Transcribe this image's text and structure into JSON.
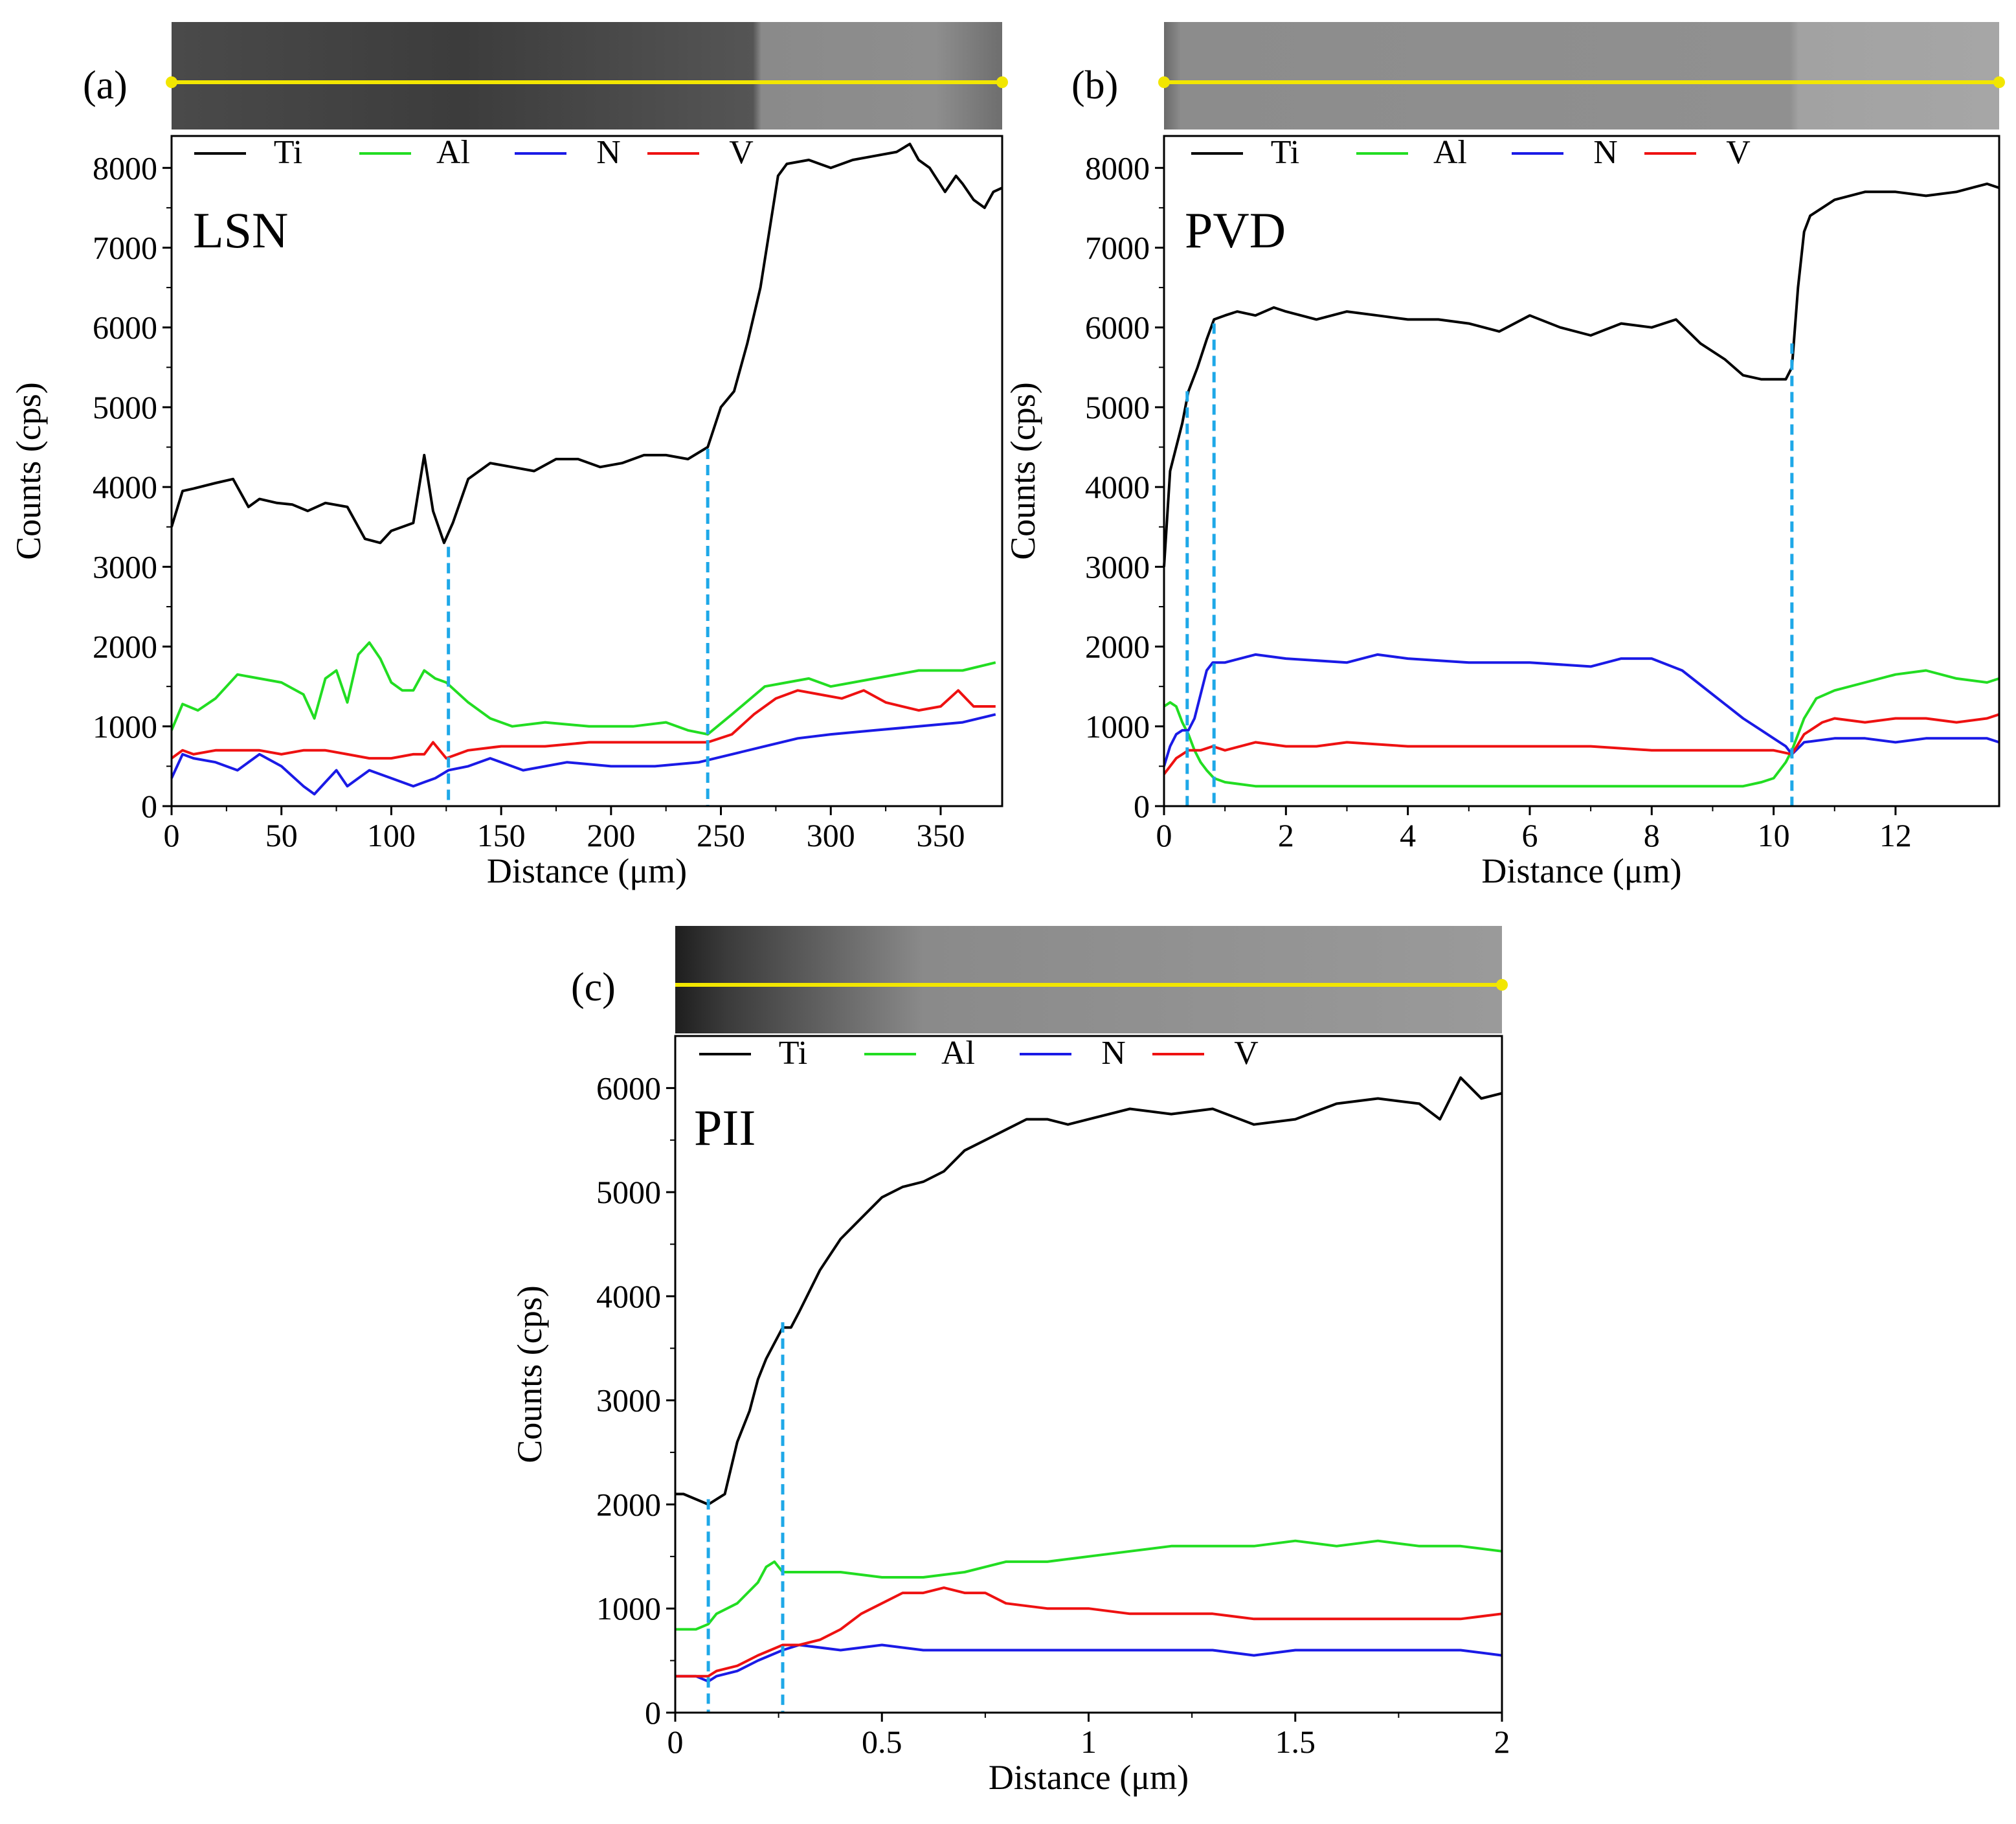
{
  "figure": {
    "legend_labels": [
      "Ti",
      "Al",
      "N",
      "V"
    ],
    "series_colors": {
      "Ti": "#000000",
      "Al": "#22dd22",
      "N": "#1a1ae6",
      "V": "#ee1111"
    },
    "marker_color": "#1ea8e8",
    "scan_line_color": "#f2e600"
  },
  "chart_data": [
    {
      "panel": "(a)",
      "sample": "LSN",
      "type": "line",
      "xlabel": "Distance (μm)",
      "ylabel": "Counts (cps)",
      "xlim": [
        0,
        378
      ],
      "ylim": [
        0,
        8400
      ],
      "xticks": [
        0,
        50,
        100,
        150,
        200,
        250,
        300,
        350
      ],
      "xtick_labels": [
        "0",
        "50",
        "100",
        "150",
        "200",
        "250",
        "300",
        "350"
      ],
      "yticks": [
        0,
        1000,
        2000,
        3000,
        4000,
        5000,
        6000,
        7000,
        8000
      ],
      "ytick_labels": [
        "0",
        "1000",
        "2000",
        "3000",
        "4000",
        "5000",
        "6000",
        "7000",
        "8000"
      ],
      "markers": [
        {
          "x": 126,
          "ytop": 3250
        },
        {
          "x": 244,
          "ytop": 4480
        }
      ],
      "series": [
        {
          "name": "Ti",
          "x": [
            0,
            5,
            10,
            20,
            28,
            35,
            40,
            48,
            55,
            62,
            70,
            80,
            88,
            95,
            100,
            110,
            115,
            119,
            124,
            128,
            135,
            145,
            155,
            165,
            175,
            185,
            195,
            205,
            215,
            225,
            235,
            244,
            250,
            256,
            262,
            268,
            272,
            276,
            280,
            290,
            300,
            310,
            320,
            330,
            336,
            340,
            345,
            352,
            357,
            360,
            365,
            370,
            374,
            378
          ],
          "y": [
            3500,
            3950,
            3980,
            4050,
            4100,
            3750,
            3850,
            3800,
            3780,
            3700,
            3800,
            3750,
            3350,
            3300,
            3450,
            3550,
            4400,
            3700,
            3300,
            3550,
            4100,
            4300,
            4250,
            4200,
            4350,
            4350,
            4250,
            4300,
            4400,
            4400,
            4350,
            4500,
            5000,
            5200,
            5800,
            6500,
            7200,
            7900,
            8050,
            8100,
            8000,
            8100,
            8150,
            8200,
            8300,
            8100,
            8000,
            7700,
            7900,
            7800,
            7600,
            7500,
            7700,
            7750
          ]
        },
        {
          "name": "Al",
          "x": [
            0,
            5,
            12,
            20,
            30,
            40,
            50,
            60,
            65,
            70,
            75,
            80,
            85,
            90,
            95,
            100,
            105,
            110,
            115,
            120,
            125,
            135,
            145,
            155,
            170,
            190,
            210,
            225,
            235,
            244,
            255,
            270,
            280,
            290,
            300,
            320,
            340,
            360,
            375
          ],
          "y": [
            950,
            1280,
            1200,
            1350,
            1650,
            1600,
            1550,
            1400,
            1100,
            1600,
            1700,
            1300,
            1900,
            2050,
            1850,
            1550,
            1450,
            1450,
            1700,
            1600,
            1550,
            1300,
            1100,
            1000,
            1050,
            1000,
            1000,
            1050,
            950,
            900,
            1150,
            1500,
            1550,
            1600,
            1500,
            1600,
            1700,
            1700,
            1800
          ]
        },
        {
          "name": "N",
          "x": [
            0,
            5,
            10,
            20,
            30,
            40,
            50,
            60,
            65,
            70,
            75,
            80,
            85,
            90,
            95,
            100,
            110,
            115,
            120,
            126,
            135,
            145,
            160,
            180,
            200,
            220,
            240,
            255,
            270,
            285,
            300,
            320,
            340,
            360,
            375
          ],
          "y": [
            350,
            650,
            600,
            550,
            450,
            650,
            500,
            250,
            150,
            300,
            450,
            250,
            350,
            450,
            400,
            350,
            250,
            300,
            350,
            450,
            500,
            600,
            450,
            550,
            500,
            500,
            550,
            650,
            750,
            850,
            900,
            950,
            1000,
            1050,
            1150
          ]
        },
        {
          "name": "V",
          "x": [
            0,
            5,
            10,
            20,
            30,
            40,
            50,
            60,
            70,
            80,
            90,
            100,
            110,
            115,
            119,
            125,
            135,
            150,
            170,
            190,
            210,
            230,
            244,
            255,
            265,
            275,
            285,
            295,
            305,
            315,
            325,
            340,
            350,
            358,
            365,
            375
          ],
          "y": [
            600,
            700,
            650,
            700,
            700,
            700,
            650,
            700,
            700,
            650,
            600,
            600,
            650,
            650,
            800,
            600,
            700,
            750,
            750,
            800,
            800,
            800,
            800,
            900,
            1150,
            1350,
            1450,
            1400,
            1350,
            1450,
            1300,
            1200,
            1250,
            1450,
            1250,
            1250
          ]
        }
      ]
    },
    {
      "panel": "(b)",
      "sample": "PVD",
      "type": "line",
      "xlabel": "Distance (μm)",
      "ylabel": "Counts (cps)",
      "xlim": [
        0,
        13.7
      ],
      "ylim": [
        0,
        8400
      ],
      "xticks": [
        0,
        2,
        4,
        6,
        8,
        10,
        12
      ],
      "xtick_labels": [
        "0",
        "2",
        "4",
        "6",
        "8",
        "10",
        "12"
      ],
      "yticks": [
        0,
        1000,
        2000,
        3000,
        4000,
        5000,
        6000,
        7000,
        8000
      ],
      "ytick_labels": [
        "0",
        "1000",
        "2000",
        "3000",
        "4000",
        "5000",
        "6000",
        "7000",
        "8000"
      ],
      "markers": [
        {
          "x": 0.38,
          "ytop": 5200
        },
        {
          "x": 0.82,
          "ytop": 6050
        },
        {
          "x": 10.3,
          "ytop": 5800
        }
      ],
      "series": [
        {
          "name": "Ti",
          "x": [
            0,
            0.1,
            0.2,
            0.3,
            0.4,
            0.55,
            0.7,
            0.82,
            1.0,
            1.2,
            1.5,
            1.8,
            2.0,
            2.5,
            3.0,
            3.5,
            4.0,
            4.5,
            5.0,
            5.5,
            6.0,
            6.5,
            7.0,
            7.5,
            8.0,
            8.4,
            8.8,
            9.2,
            9.5,
            9.8,
            10.0,
            10.2,
            10.3,
            10.4,
            10.5,
            10.6,
            10.8,
            11.0,
            11.5,
            12.0,
            12.5,
            13.0,
            13.5,
            13.7
          ],
          "y": [
            3000,
            4200,
            4500,
            4800,
            5200,
            5500,
            5850,
            6100,
            6150,
            6200,
            6150,
            6250,
            6200,
            6100,
            6200,
            6150,
            6100,
            6100,
            6050,
            5950,
            6150,
            6000,
            5900,
            6050,
            6000,
            6100,
            5800,
            5600,
            5400,
            5350,
            5350,
            5350,
            5500,
            6500,
            7200,
            7400,
            7500,
            7600,
            7700,
            7700,
            7650,
            7700,
            7800,
            7750
          ]
        },
        {
          "name": "Al",
          "x": [
            0,
            0.1,
            0.2,
            0.3,
            0.4,
            0.5,
            0.6,
            0.7,
            0.82,
            1.0,
            1.5,
            2.0,
            3.0,
            4.0,
            5.0,
            6.0,
            7.0,
            8.0,
            9.0,
            9.5,
            9.8,
            10.0,
            10.2,
            10.3,
            10.5,
            10.7,
            11.0,
            11.5,
            12.0,
            12.5,
            13.0,
            13.5,
            13.7
          ],
          "y": [
            1250,
            1300,
            1250,
            1050,
            900,
            700,
            550,
            450,
            350,
            300,
            250,
            250,
            250,
            250,
            250,
            250,
            250,
            250,
            250,
            250,
            300,
            350,
            550,
            700,
            1100,
            1350,
            1450,
            1550,
            1650,
            1700,
            1600,
            1550,
            1600
          ]
        },
        {
          "name": "N",
          "x": [
            0,
            0.1,
            0.2,
            0.3,
            0.4,
            0.5,
            0.6,
            0.7,
            0.8,
            1.0,
            1.5,
            2.0,
            3.0,
            3.5,
            4.0,
            5.0,
            6.0,
            7.0,
            7.5,
            8.0,
            8.5,
            9.0,
            9.5,
            9.8,
            10.0,
            10.2,
            10.3,
            10.5,
            11.0,
            11.5,
            12.0,
            12.5,
            13.0,
            13.5,
            13.7
          ],
          "y": [
            500,
            750,
            900,
            950,
            950,
            1100,
            1400,
            1700,
            1800,
            1800,
            1900,
            1850,
            1800,
            1900,
            1850,
            1800,
            1800,
            1750,
            1850,
            1850,
            1700,
            1400,
            1100,
            950,
            850,
            750,
            650,
            800,
            850,
            850,
            800,
            850,
            850,
            850,
            800
          ]
        },
        {
          "name": "V",
          "x": [
            0,
            0.2,
            0.4,
            0.6,
            0.8,
            1.0,
            1.5,
            2.0,
            2.5,
            3.0,
            4.0,
            5.0,
            6.0,
            7.0,
            8.0,
            9.0,
            9.5,
            10.0,
            10.3,
            10.5,
            10.8,
            11.0,
            11.5,
            12.0,
            12.5,
            13.0,
            13.5,
            13.7
          ],
          "y": [
            400,
            600,
            700,
            700,
            750,
            700,
            800,
            750,
            750,
            800,
            750,
            750,
            750,
            750,
            700,
            700,
            700,
            700,
            650,
            900,
            1050,
            1100,
            1050,
            1100,
            1100,
            1050,
            1100,
            1150
          ]
        }
      ]
    },
    {
      "panel": "(c)",
      "sample": "PII",
      "type": "line",
      "xlabel": "Distance (μm)",
      "ylabel": "Counts (cps)",
      "xlim": [
        0,
        2
      ],
      "ylim": [
        0,
        6500
      ],
      "xticks": [
        0,
        0.5,
        1,
        1.5,
        2
      ],
      "xtick_labels": [
        "0",
        "0.5",
        "1",
        "1.5",
        "2"
      ],
      "yticks": [
        0,
        1000,
        2000,
        3000,
        4000,
        5000,
        6000
      ],
      "ytick_labels": [
        "0",
        "1000",
        "2000",
        "3000",
        "4000",
        "5000",
        "6000"
      ],
      "markers": [
        {
          "x": 0.08,
          "ytop": 2050
        },
        {
          "x": 0.26,
          "ytop": 3750
        }
      ],
      "series": [
        {
          "name": "Ti",
          "x": [
            0,
            0.02,
            0.05,
            0.08,
            0.1,
            0.12,
            0.15,
            0.18,
            0.2,
            0.22,
            0.24,
            0.26,
            0.28,
            0.3,
            0.35,
            0.4,
            0.45,
            0.5,
            0.55,
            0.6,
            0.65,
            0.7,
            0.75,
            0.8,
            0.85,
            0.9,
            0.95,
            1.0,
            1.1,
            1.2,
            1.3,
            1.4,
            1.5,
            1.6,
            1.7,
            1.8,
            1.85,
            1.9,
            1.95,
            2.0
          ],
          "y": [
            2100,
            2100,
            2050,
            2000,
            2050,
            2100,
            2600,
            2900,
            3200,
            3400,
            3550,
            3700,
            3700,
            3850,
            4250,
            4550,
            4750,
            4950,
            5050,
            5100,
            5200,
            5400,
            5500,
            5600,
            5700,
            5700,
            5650,
            5700,
            5800,
            5750,
            5800,
            5650,
            5700,
            5850,
            5900,
            5850,
            5700,
            6100,
            5900,
            5950
          ]
        },
        {
          "name": "Al",
          "x": [
            0,
            0.05,
            0.08,
            0.1,
            0.15,
            0.2,
            0.22,
            0.24,
            0.26,
            0.3,
            0.4,
            0.5,
            0.6,
            0.7,
            0.8,
            0.9,
            1.0,
            1.1,
            1.2,
            1.3,
            1.4,
            1.5,
            1.6,
            1.7,
            1.8,
            1.9,
            2.0
          ],
          "y": [
            800,
            800,
            850,
            950,
            1050,
            1250,
            1400,
            1450,
            1350,
            1350,
            1350,
            1300,
            1300,
            1350,
            1450,
            1450,
            1500,
            1550,
            1600,
            1600,
            1600,
            1650,
            1600,
            1650,
            1600,
            1600,
            1550
          ]
        },
        {
          "name": "N",
          "x": [
            0,
            0.05,
            0.08,
            0.1,
            0.15,
            0.2,
            0.26,
            0.3,
            0.4,
            0.5,
            0.6,
            0.7,
            0.8,
            0.9,
            1.0,
            1.1,
            1.2,
            1.3,
            1.4,
            1.5,
            1.6,
            1.7,
            1.8,
            1.9,
            2.0
          ],
          "y": [
            350,
            350,
            300,
            350,
            400,
            500,
            600,
            650,
            600,
            650,
            600,
            600,
            600,
            600,
            600,
            600,
            600,
            600,
            550,
            600,
            600,
            600,
            600,
            600,
            550
          ]
        },
        {
          "name": "V",
          "x": [
            0,
            0.05,
            0.08,
            0.1,
            0.15,
            0.2,
            0.26,
            0.3,
            0.35,
            0.4,
            0.45,
            0.5,
            0.55,
            0.6,
            0.65,
            0.7,
            0.75,
            0.8,
            0.9,
            1.0,
            1.1,
            1.2,
            1.3,
            1.4,
            1.5,
            1.6,
            1.7,
            1.8,
            1.9,
            2.0
          ],
          "y": [
            350,
            350,
            350,
            400,
            450,
            550,
            650,
            650,
            700,
            800,
            950,
            1050,
            1150,
            1150,
            1200,
            1150,
            1150,
            1050,
            1000,
            1000,
            950,
            950,
            950,
            900,
            900,
            900,
            900,
            900,
            900,
            950
          ]
        }
      ]
    }
  ]
}
